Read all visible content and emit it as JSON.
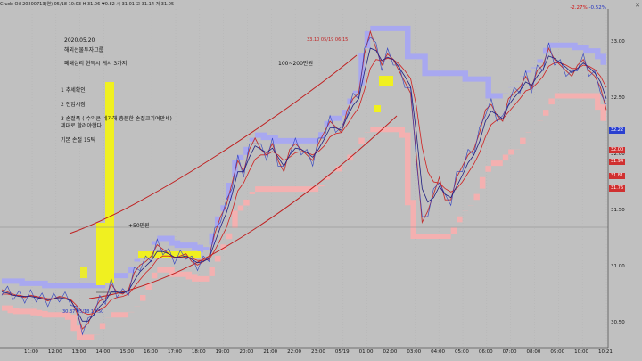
{
  "header": {
    "symbol_info": "Crude Oil-20200713(연) 05/18 10:03  H 31.06 ▼0.82  시 31.01  고 31.14 저 31.05",
    "change_pct": "-2.27%",
    "change_val": "-0.52%",
    "close_icon": "close-icon"
  },
  "notes": {
    "date": "2020.05.20",
    "author": "해외선물투자그룹",
    "title": "폐쇄심리 현득시 게시 3가지",
    "profit_target": "100~200만원",
    "item1": "1 추세확인",
    "item2": "2 진입시점",
    "item3": "3 손절폭 ( 수익은 네가해 충분한 손절크기여만세)",
    "item3b": "제대로 할려야한다.",
    "item4": "기본 손절 15틱"
  },
  "annotations": {
    "top_price": "33.10 05/19 06:15",
    "low_price": "30.37 05/18 12:50",
    "gain_label": "+50만원"
  },
  "chart_data": {
    "type": "line",
    "title": "",
    "xlabel": "",
    "ylabel": "",
    "ylim": [
      30.3,
      33.3
    ],
    "y_ticks": [
      "33.00",
      "32.50",
      "32.00",
      "31.50",
      "31.00",
      "30.50"
    ],
    "x_ticks": [
      "11:00",
      "12:00",
      "13:00",
      "14:00",
      "15:00",
      "16:00",
      "17:00",
      "18:00",
      "19:00",
      "20:00",
      "21:00",
      "22:00",
      "23:00",
      "05/19",
      "01:00",
      "02:00",
      "03:00",
      "04:00",
      "05:00",
      "06:00",
      "07:00",
      "08:00",
      "09:00",
      "10:00",
      "10:21"
    ],
    "price_series": [
      30.8,
      30.78,
      30.76,
      30.74,
      30.73,
      30.75,
      30.74,
      30.72,
      30.7,
      30.72,
      30.74,
      30.73,
      30.71,
      30.6,
      30.45,
      30.5,
      30.62,
      30.7,
      30.72,
      30.85,
      30.78,
      30.76,
      30.8,
      30.95,
      31.02,
      31.05,
      31.1,
      31.2,
      31.16,
      31.12,
      31.08,
      31.1,
      31.12,
      31.05,
      31.02,
      31.05,
      31.1,
      31.3,
      31.45,
      31.55,
      31.75,
      31.95,
      31.85,
      32.05,
      32.15,
      32.05,
      32.0,
      32.1,
      31.95,
      31.85,
      32.05,
      32.1,
      32.05,
      32.0,
      31.95,
      32.1,
      32.2,
      32.3,
      32.25,
      32.2,
      32.4,
      32.5,
      32.55,
      32.9,
      33.1,
      32.95,
      32.8,
      32.9,
      32.85,
      32.75,
      32.65,
      32.55,
      32.0,
      31.4,
      31.5,
      31.65,
      31.8,
      31.6,
      31.6,
      31.8,
      31.9,
      32.0,
      32.05,
      32.2,
      32.4,
      32.45,
      32.35,
      32.3,
      32.5,
      32.55,
      32.6,
      32.7,
      32.6,
      32.75,
      32.8,
      32.95,
      32.85,
      32.8,
      32.75,
      32.7,
      32.8,
      32.85,
      32.75,
      32.7,
      32.6,
      32.4
    ],
    "ma_fast": [
      30.78,
      30.77,
      30.75,
      30.74,
      30.74,
      30.74,
      30.73,
      30.72,
      30.71,
      30.72,
      30.73,
      30.72,
      30.7,
      30.62,
      30.52,
      30.52,
      30.58,
      30.65,
      30.7,
      30.78,
      30.78,
      30.77,
      30.79,
      30.88,
      30.96,
      31.01,
      31.06,
      31.14,
      31.14,
      31.12,
      31.09,
      31.09,
      31.1,
      31.07,
      31.04,
      31.05,
      31.08,
      31.22,
      31.36,
      31.48,
      31.65,
      31.85,
      31.85,
      31.98,
      32.08,
      32.05,
      32.02,
      32.06,
      31.98,
      31.9,
      32.0,
      32.06,
      32.05,
      32.02,
      31.98,
      32.05,
      32.14,
      32.24,
      32.24,
      32.22,
      32.34,
      32.44,
      32.5,
      32.74,
      32.95,
      32.93,
      32.84,
      32.87,
      32.85,
      32.78,
      32.7,
      32.61,
      32.2,
      31.7,
      31.58,
      31.62,
      31.72,
      31.65,
      31.62,
      31.72,
      31.82,
      31.93,
      32.0,
      32.12,
      32.3,
      32.39,
      32.36,
      32.32,
      32.44,
      32.51,
      32.57,
      32.65,
      32.62,
      32.7,
      32.76,
      32.88,
      32.86,
      32.82,
      32.78,
      32.73,
      32.77,
      32.82,
      32.78,
      32.73,
      32.65,
      32.5
    ],
    "ma_slow": [
      30.76,
      30.76,
      30.75,
      30.75,
      30.74,
      30.74,
      30.74,
      30.73,
      30.72,
      30.72,
      30.72,
      30.72,
      30.71,
      30.66,
      30.6,
      30.58,
      30.59,
      30.62,
      30.65,
      30.71,
      30.73,
      30.74,
      30.76,
      30.82,
      30.89,
      30.95,
      31.0,
      31.07,
      31.1,
      31.1,
      31.09,
      31.09,
      31.09,
      31.08,
      31.06,
      31.06,
      31.07,
      31.15,
      31.25,
      31.35,
      31.5,
      31.68,
      31.75,
      31.86,
      31.96,
      32.0,
      32.0,
      32.03,
      32.0,
      31.95,
      31.98,
      32.02,
      32.03,
      32.02,
      32.0,
      32.03,
      32.08,
      32.16,
      32.19,
      32.2,
      32.27,
      32.35,
      32.42,
      32.58,
      32.77,
      32.85,
      32.84,
      32.86,
      32.85,
      32.81,
      32.75,
      32.68,
      32.44,
      32.07,
      31.85,
      31.76,
      31.75,
      31.7,
      31.67,
      31.7,
      31.76,
      31.84,
      31.92,
      32.02,
      32.16,
      32.27,
      32.31,
      32.32,
      32.38,
      32.44,
      32.5,
      32.57,
      32.59,
      32.64,
      32.7,
      32.79,
      32.82,
      32.82,
      32.8,
      32.77,
      32.77,
      32.8,
      32.79,
      32.76,
      32.7,
      32.6
    ],
    "upper_band": [
      30.9,
      30.9,
      30.9,
      30.9,
      30.88,
      30.88,
      30.88,
      30.88,
      30.86,
      30.86,
      30.86,
      30.86,
      30.86,
      30.86,
      30.86,
      30.86,
      30.86,
      30.86,
      30.86,
      30.95,
      30.95,
      30.95,
      30.95,
      31.05,
      31.12,
      31.15,
      31.2,
      31.28,
      31.28,
      31.28,
      31.24,
      31.22,
      31.22,
      31.22,
      31.2,
      31.18,
      31.2,
      31.35,
      31.5,
      31.6,
      31.8,
      32.0,
      32.0,
      32.12,
      32.2,
      32.2,
      32.18,
      32.18,
      32.15,
      32.15,
      32.15,
      32.15,
      32.15,
      32.15,
      32.15,
      32.15,
      32.25,
      32.35,
      32.35,
      32.35,
      32.45,
      32.55,
      32.62,
      32.95,
      33.15,
      33.15,
      33.15,
      33.15,
      33.15,
      33.15,
      33.15,
      32.9,
      32.9,
      32.9,
      32.75,
      32.75,
      32.75,
      32.75,
      32.75,
      32.75,
      32.75,
      32.7,
      32.7,
      32.7,
      32.7,
      32.55,
      32.55,
      32.55,
      32.6,
      32.65,
      32.7,
      32.75,
      32.78,
      32.82,
      32.9,
      33.0,
      33.0,
      33.0,
      33.0,
      33.0,
      32.98,
      32.98,
      32.95,
      32.95,
      32.9,
      32.85
    ],
    "lower_band": [
      30.66,
      30.66,
      30.64,
      30.63,
      30.63,
      30.63,
      30.62,
      30.61,
      30.6,
      30.6,
      30.6,
      30.6,
      30.58,
      30.48,
      30.4,
      30.4,
      30.4,
      30.45,
      30.55,
      30.6,
      30.6,
      30.6,
      30.6,
      30.65,
      30.7,
      30.8,
      30.9,
      31.0,
      31.0,
      31.0,
      30.96,
      30.96,
      30.96,
      30.94,
      30.92,
      30.92,
      30.92,
      31.05,
      31.15,
      31.25,
      31.35,
      31.55,
      31.55,
      31.65,
      31.72,
      31.72,
      31.72,
      31.72,
      31.72,
      31.72,
      31.72,
      31.72,
      31.72,
      31.72,
      31.72,
      31.72,
      31.78,
      31.85,
      31.9,
      31.9,
      31.95,
      32.05,
      32.1,
      32.2,
      32.25,
      32.25,
      32.25,
      32.25,
      32.25,
      32.25,
      32.2,
      31.6,
      31.3,
      31.3,
      31.3,
      31.3,
      31.3,
      31.3,
      31.3,
      31.4,
      31.5,
      31.55,
      31.6,
      31.7,
      31.85,
      31.95,
      31.95,
      31.95,
      32.05,
      32.05,
      32.1,
      32.2,
      32.25,
      32.3,
      32.35,
      32.45,
      32.55,
      32.55,
      32.55,
      32.55,
      32.55,
      32.55,
      32.55,
      32.55,
      32.45,
      32.35
    ],
    "badges": [
      {
        "label": "32.22",
        "color": "#2a40d0",
        "y": 32.22
      },
      {
        "label": "32.00",
        "color": "#d03030",
        "y": 32.04
      },
      {
        "label": "31.94",
        "color": "#d03030",
        "y": 31.94
      },
      {
        "label": "31.81",
        "color": "#d03030",
        "y": 31.81
      },
      {
        "label": "31.76",
        "color": "#d03030",
        "y": 31.7
      }
    ]
  }
}
